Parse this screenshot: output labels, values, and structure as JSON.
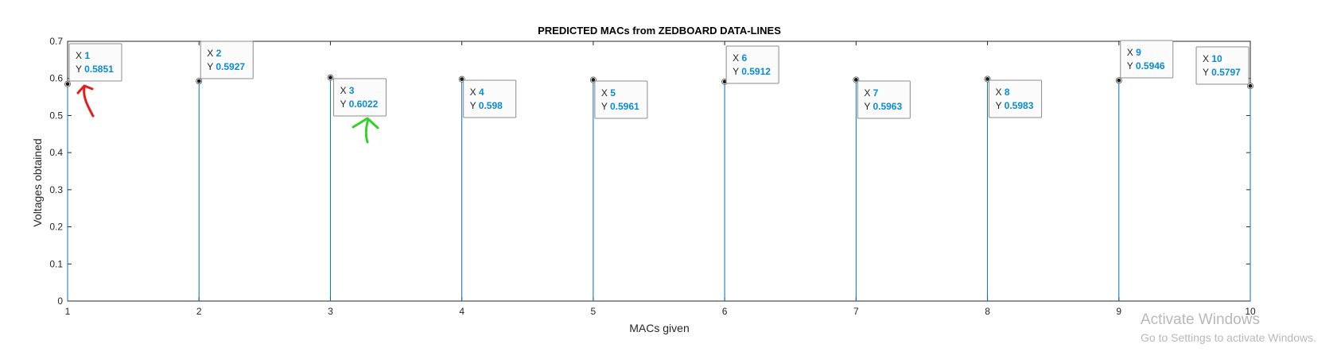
{
  "chart_data": {
    "type": "stem",
    "title": "PREDICTED MACs from ZEDBOARD DATA-LINES",
    "xlabel": "MACs given",
    "ylabel": "Voltages obtained",
    "xlim": [
      1,
      10
    ],
    "ylim": [
      0,
      0.7
    ],
    "x_ticks": [
      "1",
      "2",
      "3",
      "4",
      "5",
      "6",
      "7",
      "8",
      "9",
      "10"
    ],
    "y_ticks": [
      "0",
      "0.1",
      "0.2",
      "0.3",
      "0.4",
      "0.5",
      "0.6",
      "0.7"
    ],
    "x": [
      1,
      2,
      3,
      4,
      5,
      6,
      7,
      8,
      9,
      10
    ],
    "y": [
      0.5851,
      0.5927,
      0.6022,
      0.598,
      0.5961,
      0.5912,
      0.5963,
      0.5983,
      0.5946,
      0.5797
    ],
    "datatips": [
      {
        "x": "1",
        "y": "0.5851"
      },
      {
        "x": "2",
        "y": "0.5927"
      },
      {
        "x": "3",
        "y": "0.6022"
      },
      {
        "x": "4",
        "y": "0.598"
      },
      {
        "x": "5",
        "y": "0.5961"
      },
      {
        "x": "6",
        "y": "0.5912"
      },
      {
        "x": "7",
        "y": "0.5963"
      },
      {
        "x": "8",
        "y": "0.5983"
      },
      {
        "x": "9",
        "y": "0.5946"
      },
      {
        "x": "10",
        "y": "0.5797"
      }
    ],
    "datatip_prefix_x": "X",
    "datatip_prefix_y": "Y",
    "grid": false,
    "colors": {
      "stem": "#0072BD",
      "marker_fill": "#1a1a1a",
      "datatip_value": "#0a8bd6",
      "annotation_red": "#e0201b",
      "annotation_green": "#33d12a"
    }
  },
  "watermark": {
    "line1": "Activate Windows",
    "line2": "Go to Settings to activate Windows."
  }
}
